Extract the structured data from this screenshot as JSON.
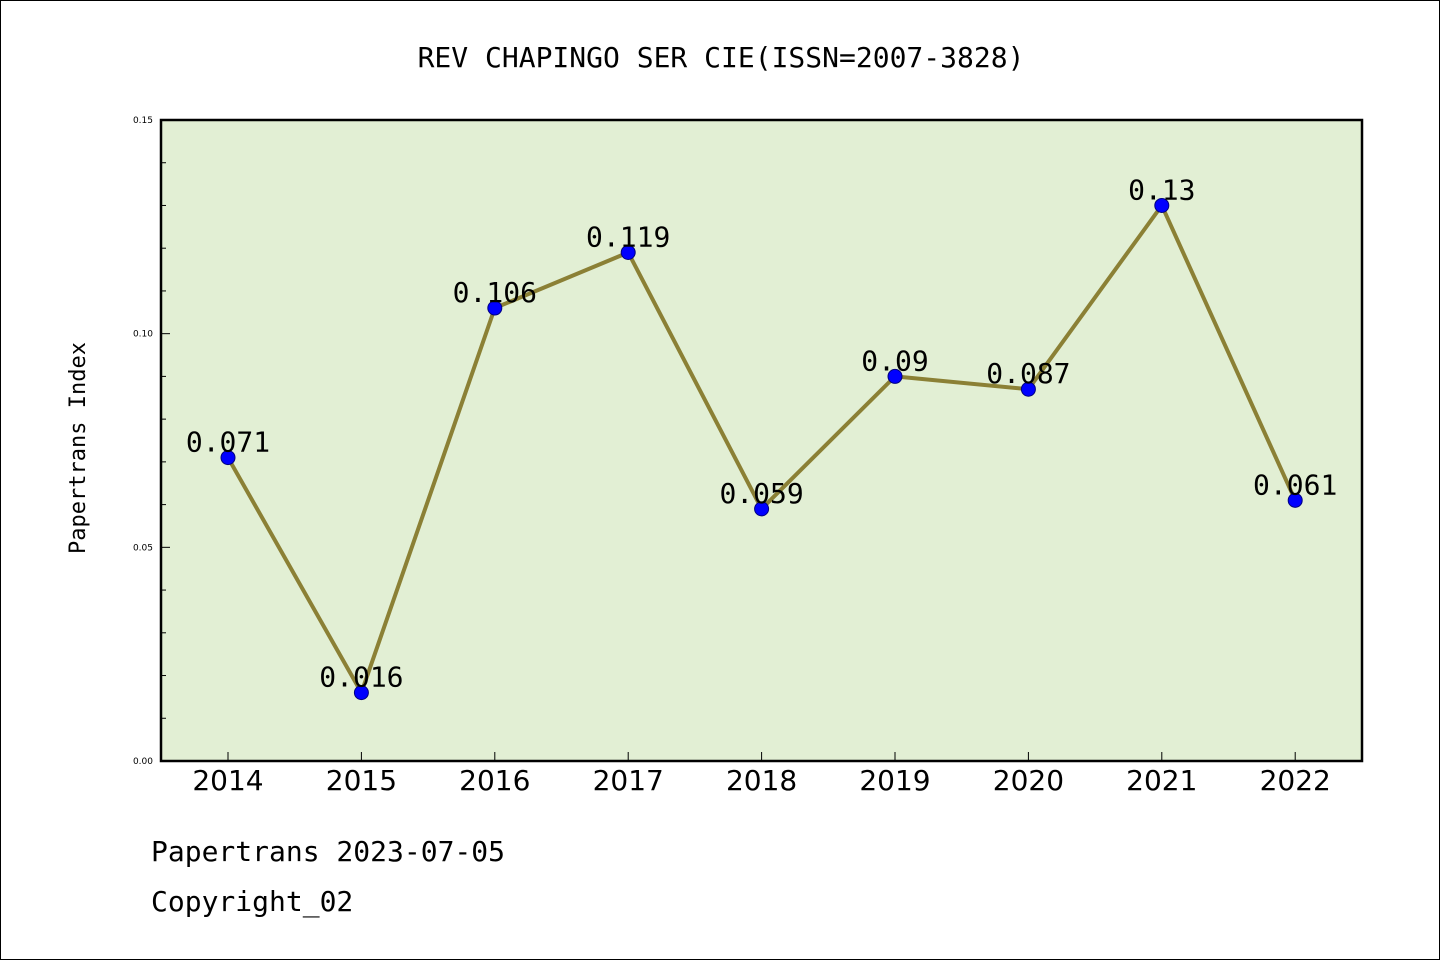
{
  "chart_data": {
    "type": "line",
    "title": "REV CHAPINGO SER CIE(ISSN=2007-3828)",
    "xlabel": "",
    "ylabel": "Papertrans Index",
    "categories": [
      "2014",
      "2015",
      "2016",
      "2017",
      "2018",
      "2019",
      "2020",
      "2021",
      "2022"
    ],
    "values": [
      0.071,
      0.016,
      0.106,
      0.119,
      0.059,
      0.09,
      0.087,
      0.13,
      0.061
    ],
    "data_labels": [
      "0.071",
      "0.016",
      "0.106",
      "0.119",
      "0.059",
      "0.09",
      "0.087",
      "0.13",
      "0.061"
    ],
    "ylim": [
      0,
      0.15
    ],
    "yticks": [
      0.0,
      0.05,
      0.1,
      0.15
    ],
    "ytick_labels": [
      "0.00",
      "0.05",
      "0.10",
      "0.15"
    ],
    "grid": false,
    "colors": {
      "plot_background": "#e2efd4",
      "line": "#8b8035",
      "marker": "#0000ff",
      "marker_edge": "#000080"
    }
  },
  "footer": {
    "line1": "Papertrans 2023-07-05",
    "line2": "Copyright_02"
  }
}
